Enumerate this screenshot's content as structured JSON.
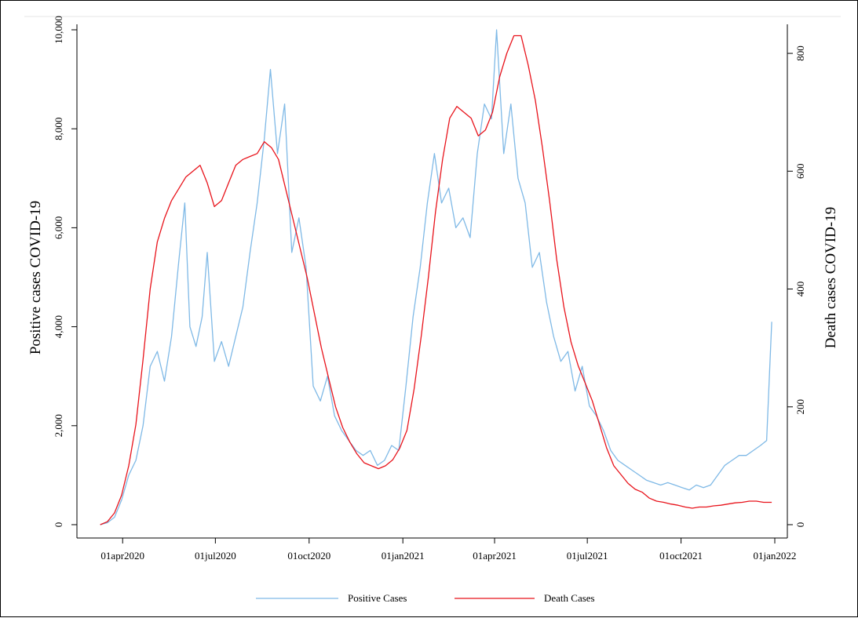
{
  "chart_data": {
    "type": "line",
    "title": "",
    "xlabel": "",
    "ylabel": "Positive cases COVID-19",
    "y2label": "Death cases COVID-19",
    "xlim": [
      "2020-03-01",
      "2022-01-01"
    ],
    "ylim": [
      0,
      10000
    ],
    "y2lim": [
      0,
      840
    ],
    "x_ticks": [
      {
        "date": "2020-04-01",
        "label": "01apr2020"
      },
      {
        "date": "2020-07-01",
        "label": "01jul2020"
      },
      {
        "date": "2020-10-01",
        "label": "01oct2020"
      },
      {
        "date": "2021-01-01",
        "label": "01jan2021"
      },
      {
        "date": "2021-04-01",
        "label": "01apr2021"
      },
      {
        "date": "2021-07-01",
        "label": "01jul2021"
      },
      {
        "date": "2021-10-01",
        "label": "01oct2021"
      },
      {
        "date": "2022-01-01",
        "label": "01jan2022"
      }
    ],
    "y_ticks": [
      {
        "value": 0,
        "label": "0"
      },
      {
        "value": 2000,
        "label": "2,000"
      },
      {
        "value": 4000,
        "label": "4,000"
      },
      {
        "value": 6000,
        "label": "6,000"
      },
      {
        "value": 8000,
        "label": "8,000"
      },
      {
        "value": 10000,
        "label": "10,000"
      }
    ],
    "y2_ticks": [
      {
        "value": 0,
        "label": "0"
      },
      {
        "value": 200,
        "label": "200"
      },
      {
        "value": 400,
        "label": "400"
      },
      {
        "value": 600,
        "label": "600"
      },
      {
        "value": 800,
        "label": "800"
      }
    ],
    "legend_position": "bottom",
    "grid": false,
    "series": [
      {
        "name": "Positive Cases",
        "axis": "left",
        "color": "#7fb9e6",
        "points": [
          [
            "2020-03-10",
            0
          ],
          [
            "2020-03-17",
            40
          ],
          [
            "2020-03-24",
            150
          ],
          [
            "2020-03-31",
            500
          ],
          [
            "2020-04-07",
            1000
          ],
          [
            "2020-04-14",
            1300
          ],
          [
            "2020-04-21",
            2000
          ],
          [
            "2020-04-28",
            3200
          ],
          [
            "2020-05-05",
            3500
          ],
          [
            "2020-05-12",
            2900
          ],
          [
            "2020-05-19",
            3800
          ],
          [
            "2020-05-26",
            5300
          ],
          [
            "2020-06-01",
            6500
          ],
          [
            "2020-06-06",
            4000
          ],
          [
            "2020-06-12",
            3600
          ],
          [
            "2020-06-18",
            4200
          ],
          [
            "2020-06-23",
            5500
          ],
          [
            "2020-06-30",
            3300
          ],
          [
            "2020-07-07",
            3700
          ],
          [
            "2020-07-14",
            3200
          ],
          [
            "2020-07-21",
            3800
          ],
          [
            "2020-07-28",
            4400
          ],
          [
            "2020-08-04",
            5500
          ],
          [
            "2020-08-11",
            6500
          ],
          [
            "2020-08-18",
            7800
          ],
          [
            "2020-08-24",
            9200
          ],
          [
            "2020-08-31",
            7500
          ],
          [
            "2020-09-07",
            8500
          ],
          [
            "2020-09-14",
            5500
          ],
          [
            "2020-09-21",
            6200
          ],
          [
            "2020-09-28",
            5200
          ],
          [
            "2020-10-05",
            2800
          ],
          [
            "2020-10-12",
            2500
          ],
          [
            "2020-10-19",
            3000
          ],
          [
            "2020-10-26",
            2200
          ],
          [
            "2020-11-02",
            1900
          ],
          [
            "2020-11-09",
            1700
          ],
          [
            "2020-11-16",
            1500
          ],
          [
            "2020-11-23",
            1400
          ],
          [
            "2020-11-30",
            1500
          ],
          [
            "2020-12-07",
            1200
          ],
          [
            "2020-12-14",
            1300
          ],
          [
            "2020-12-21",
            1600
          ],
          [
            "2020-12-28",
            1500
          ],
          [
            "2021-01-04",
            2800
          ],
          [
            "2021-01-11",
            4200
          ],
          [
            "2021-01-18",
            5200
          ],
          [
            "2021-01-25",
            6500
          ],
          [
            "2021-02-01",
            7500
          ],
          [
            "2021-02-08",
            6500
          ],
          [
            "2021-02-15",
            6800
          ],
          [
            "2021-02-22",
            6000
          ],
          [
            "2021-03-01",
            6200
          ],
          [
            "2021-03-08",
            5800
          ],
          [
            "2021-03-15",
            7500
          ],
          [
            "2021-03-22",
            8500
          ],
          [
            "2021-03-29",
            8200
          ],
          [
            "2021-04-03",
            10000
          ],
          [
            "2021-04-10",
            7500
          ],
          [
            "2021-04-17",
            8500
          ],
          [
            "2021-04-24",
            7000
          ],
          [
            "2021-05-01",
            6500
          ],
          [
            "2021-05-08",
            5200
          ],
          [
            "2021-05-15",
            5500
          ],
          [
            "2021-05-22",
            4500
          ],
          [
            "2021-05-29",
            3800
          ],
          [
            "2021-06-05",
            3300
          ],
          [
            "2021-06-12",
            3500
          ],
          [
            "2021-06-19",
            2700
          ],
          [
            "2021-06-26",
            3200
          ],
          [
            "2021-07-03",
            2400
          ],
          [
            "2021-07-10",
            2200
          ],
          [
            "2021-07-17",
            1900
          ],
          [
            "2021-07-24",
            1500
          ],
          [
            "2021-07-31",
            1300
          ],
          [
            "2021-08-07",
            1200
          ],
          [
            "2021-08-14",
            1100
          ],
          [
            "2021-08-21",
            1000
          ],
          [
            "2021-08-28",
            900
          ],
          [
            "2021-09-04",
            850
          ],
          [
            "2021-09-11",
            800
          ],
          [
            "2021-09-18",
            850
          ],
          [
            "2021-09-25",
            800
          ],
          [
            "2021-10-02",
            750
          ],
          [
            "2021-10-09",
            700
          ],
          [
            "2021-10-16",
            800
          ],
          [
            "2021-10-23",
            750
          ],
          [
            "2021-10-30",
            800
          ],
          [
            "2021-11-06",
            1000
          ],
          [
            "2021-11-13",
            1200
          ],
          [
            "2021-11-20",
            1300
          ],
          [
            "2021-11-27",
            1400
          ],
          [
            "2021-12-04",
            1400
          ],
          [
            "2021-12-11",
            1500
          ],
          [
            "2021-12-18",
            1600
          ],
          [
            "2021-12-24",
            1700
          ],
          [
            "2021-12-29",
            4100
          ]
        ]
      },
      {
        "name": "Death Cases",
        "axis": "right",
        "color": "#e8131b",
        "points": [
          [
            "2020-03-10",
            0
          ],
          [
            "2020-03-17",
            5
          ],
          [
            "2020-03-24",
            20
          ],
          [
            "2020-03-31",
            50
          ],
          [
            "2020-04-07",
            100
          ],
          [
            "2020-04-14",
            170
          ],
          [
            "2020-04-21",
            280
          ],
          [
            "2020-04-28",
            400
          ],
          [
            "2020-05-05",
            480
          ],
          [
            "2020-05-12",
            520
          ],
          [
            "2020-05-19",
            550
          ],
          [
            "2020-05-26",
            570
          ],
          [
            "2020-06-02",
            590
          ],
          [
            "2020-06-09",
            600
          ],
          [
            "2020-06-16",
            610
          ],
          [
            "2020-06-23",
            580
          ],
          [
            "2020-06-30",
            540
          ],
          [
            "2020-07-07",
            550
          ],
          [
            "2020-07-14",
            580
          ],
          [
            "2020-07-21",
            610
          ],
          [
            "2020-07-28",
            620
          ],
          [
            "2020-08-04",
            625
          ],
          [
            "2020-08-11",
            630
          ],
          [
            "2020-08-18",
            650
          ],
          [
            "2020-08-25",
            640
          ],
          [
            "2020-09-01",
            620
          ],
          [
            "2020-09-08",
            570
          ],
          [
            "2020-09-15",
            520
          ],
          [
            "2020-09-22",
            470
          ],
          [
            "2020-09-29",
            420
          ],
          [
            "2020-10-06",
            360
          ],
          [
            "2020-10-13",
            300
          ],
          [
            "2020-10-20",
            250
          ],
          [
            "2020-10-27",
            200
          ],
          [
            "2020-11-03",
            165
          ],
          [
            "2020-11-10",
            140
          ],
          [
            "2020-11-17",
            120
          ],
          [
            "2020-11-24",
            105
          ],
          [
            "2020-12-01",
            100
          ],
          [
            "2020-12-08",
            95
          ],
          [
            "2020-12-15",
            100
          ],
          [
            "2020-12-22",
            110
          ],
          [
            "2020-12-29",
            130
          ],
          [
            "2021-01-05",
            160
          ],
          [
            "2021-01-12",
            230
          ],
          [
            "2021-01-19",
            320
          ],
          [
            "2021-01-26",
            420
          ],
          [
            "2021-02-02",
            530
          ],
          [
            "2021-02-09",
            620
          ],
          [
            "2021-02-16",
            690
          ],
          [
            "2021-02-23",
            710
          ],
          [
            "2021-03-02",
            700
          ],
          [
            "2021-03-09",
            690
          ],
          [
            "2021-03-16",
            660
          ],
          [
            "2021-03-23",
            670
          ],
          [
            "2021-03-30",
            700
          ],
          [
            "2021-04-06",
            760
          ],
          [
            "2021-04-13",
            800
          ],
          [
            "2021-04-20",
            830
          ],
          [
            "2021-04-27",
            830
          ],
          [
            "2021-05-04",
            780
          ],
          [
            "2021-05-11",
            720
          ],
          [
            "2021-05-18",
            640
          ],
          [
            "2021-05-25",
            550
          ],
          [
            "2021-06-01",
            450
          ],
          [
            "2021-06-08",
            370
          ],
          [
            "2021-06-15",
            310
          ],
          [
            "2021-06-22",
            270
          ],
          [
            "2021-06-29",
            240
          ],
          [
            "2021-07-06",
            210
          ],
          [
            "2021-07-13",
            170
          ],
          [
            "2021-07-20",
            130
          ],
          [
            "2021-07-27",
            100
          ],
          [
            "2021-08-03",
            85
          ],
          [
            "2021-08-10",
            70
          ],
          [
            "2021-08-17",
            60
          ],
          [
            "2021-08-24",
            55
          ],
          [
            "2021-08-31",
            45
          ],
          [
            "2021-09-07",
            40
          ],
          [
            "2021-09-14",
            38
          ],
          [
            "2021-09-21",
            35
          ],
          [
            "2021-09-28",
            33
          ],
          [
            "2021-10-05",
            30
          ],
          [
            "2021-10-12",
            28
          ],
          [
            "2021-10-19",
            30
          ],
          [
            "2021-10-26",
            30
          ],
          [
            "2021-11-02",
            32
          ],
          [
            "2021-11-09",
            33
          ],
          [
            "2021-11-16",
            35
          ],
          [
            "2021-11-23",
            37
          ],
          [
            "2021-11-30",
            38
          ],
          [
            "2021-12-07",
            40
          ],
          [
            "2021-12-14",
            40
          ],
          [
            "2021-12-21",
            38
          ],
          [
            "2021-12-29",
            38
          ]
        ]
      }
    ]
  }
}
